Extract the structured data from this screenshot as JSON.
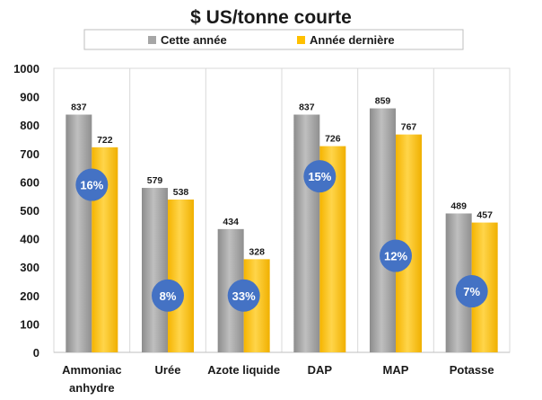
{
  "chart_data": {
    "type": "bar",
    "title": "$ US/tonne courte",
    "xlabel": "",
    "ylabel": "",
    "categories": [
      "Ammoniac anhydre",
      "Urée",
      "Azote liquide",
      "DAP",
      "MAP",
      "Potasse"
    ],
    "category_lines": [
      [
        "Ammoniac",
        "anhydre"
      ],
      [
        "Urée"
      ],
      [
        "Azote liquide"
      ],
      [
        "DAP"
      ],
      [
        "MAP"
      ],
      [
        "Potasse"
      ]
    ],
    "series": [
      {
        "name": "Cette année",
        "values": [
          837,
          579,
          434,
          837,
          859,
          489
        ],
        "color": "#a6a6a6"
      },
      {
        "name": "Année dernière",
        "values": [
          722,
          538,
          328,
          726,
          767,
          457
        ],
        "color": "#ffc000"
      }
    ],
    "data_labels": [
      [
        "837",
        "579",
        "434",
        "837",
        "859",
        "489"
      ],
      [
        "722",
        "538",
        "328",
        "726",
        "767",
        "457"
      ]
    ],
    "annotations": [
      {
        "category": "Ammoniac anhydre",
        "text": "16%",
        "y": 590
      },
      {
        "category": "Urée",
        "text": "8%",
        "y": 200
      },
      {
        "category": "Azote liquide",
        "text": "33%",
        "y": 200
      },
      {
        "category": "DAP",
        "text": "15%",
        "y": 620
      },
      {
        "category": "MAP",
        "text": "12%",
        "y": 340
      },
      {
        "category": "Potasse",
        "text": "7%",
        "y": 215
      }
    ],
    "annotation_color": "#4472c4",
    "ylim": [
      0,
      1000
    ],
    "yticks": [
      0,
      100,
      200,
      300,
      400,
      500,
      600,
      700,
      800,
      900,
      1000
    ],
    "ytick_labels": [
      "0",
      "100",
      "200",
      "300",
      "400",
      "500",
      "600",
      "700",
      "800",
      "900",
      "1000"
    ],
    "grid": false,
    "legend_position": "top"
  }
}
